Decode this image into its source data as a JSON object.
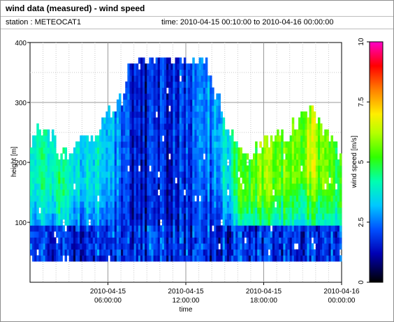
{
  "header": {
    "title": "wind data (measured) - wind speed",
    "station": "station : METEOCAT1",
    "time_range": "time: 2010-04-15 00:10:00 to 2010-04-16 00:00:00"
  },
  "chart_data": {
    "type": "heatmap",
    "xlabel": "time",
    "ylabel": "height [m]",
    "colorbar_label": "wind speed [m/s]",
    "x_ticks": [
      {
        "hour": 6,
        "line1": "2010-04-15",
        "line2": "06:00:00"
      },
      {
        "hour": 12,
        "line1": "2010-04-15",
        "line2": "12:00:00"
      },
      {
        "hour": 18,
        "line1": "2010-04-15",
        "line2": "18:00:00"
      },
      {
        "hour": 24,
        "line1": "2010-04-16",
        "line2": "00:00:00"
      }
    ],
    "xlim_hours": [
      0,
      24
    ],
    "y_ticks": [
      100,
      200,
      300,
      400
    ],
    "ylim": [
      0,
      400
    ],
    "colorbar_ticks": [
      "0",
      "2.5",
      "5",
      "7.5",
      "10"
    ],
    "colorbar_range": [
      0,
      10
    ],
    "grid": true,
    "bin_minutes": 10,
    "height_bin_m": 10,
    "min_height_m": 35,
    "height_top_keypoints": [
      [
        0,
        230
      ],
      [
        0.5,
        250
      ],
      [
        1.2,
        260
      ],
      [
        2.0,
        220
      ],
      [
        3.0,
        210
      ],
      [
        4.0,
        240
      ],
      [
        5.0,
        230
      ],
      [
        5.6,
        260
      ],
      [
        6.2,
        280
      ],
      [
        6.8,
        300
      ],
      [
        7.3,
        310
      ],
      [
        7.6,
        370
      ],
      [
        13.5,
        370
      ],
      [
        14.0,
        330
      ],
      [
        14.6,
        290
      ],
      [
        15.2,
        260
      ],
      [
        16.0,
        230
      ],
      [
        17.0,
        210
      ],
      [
        18.0,
        230
      ],
      [
        19.0,
        240
      ],
      [
        20.0,
        250
      ],
      [
        20.8,
        270
      ],
      [
        21.5,
        285
      ],
      [
        22.2,
        260
      ],
      [
        23.0,
        240
      ],
      [
        24.0,
        200
      ]
    ],
    "wind_speed_keypoints_by_hour": [
      [
        0,
        3.3
      ],
      [
        1,
        4.1
      ],
      [
        2,
        4.3
      ],
      [
        3,
        3.9
      ],
      [
        4,
        3.7
      ],
      [
        5,
        3.6
      ],
      [
        6,
        3.2
      ],
      [
        7,
        2.4
      ],
      [
        8,
        1.6
      ],
      [
        9,
        1.4
      ],
      [
        10,
        1.6
      ],
      [
        11,
        1.7
      ],
      [
        12,
        1.9
      ],
      [
        13,
        2.2
      ],
      [
        14,
        2.8
      ],
      [
        15,
        3.7
      ],
      [
        16,
        4.7
      ],
      [
        17,
        5.4
      ],
      [
        18,
        5.6
      ],
      [
        19,
        5.8
      ],
      [
        20,
        5.3
      ],
      [
        21,
        5.9
      ],
      [
        22,
        6.1
      ],
      [
        23,
        5.4
      ],
      [
        24,
        4.6
      ]
    ],
    "near_ground_wind_speed": 1.3
  }
}
